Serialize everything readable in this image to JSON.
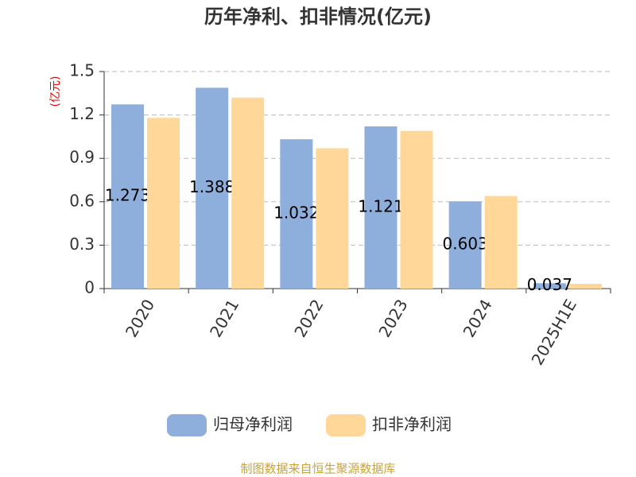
{
  "chart_data": {
    "type": "bar",
    "title": "历年净利、扣非情况(亿元)",
    "y_label": "(亿元)",
    "categories": [
      "2020",
      "2021",
      "2022",
      "2023",
      "2024",
      "2025H1E"
    ],
    "series": [
      {
        "name": "归母净利润",
        "color": "#8eaedb",
        "values": [
          1.273,
          1.388,
          1.032,
          1.121,
          0.603,
          0.037
        ]
      },
      {
        "name": "扣非净利润",
        "color": "#ffd899",
        "values": [
          1.18,
          1.32,
          0.97,
          1.09,
          0.64,
          0.033
        ]
      }
    ],
    "ylim": [
      0,
      1.5
    ],
    "yticks": [
      0,
      0.3,
      0.6,
      0.9,
      1.2,
      1.5
    ],
    "grid": true,
    "legend": "bottom",
    "footer": "制图数据来自恒生聚源数据库"
  }
}
